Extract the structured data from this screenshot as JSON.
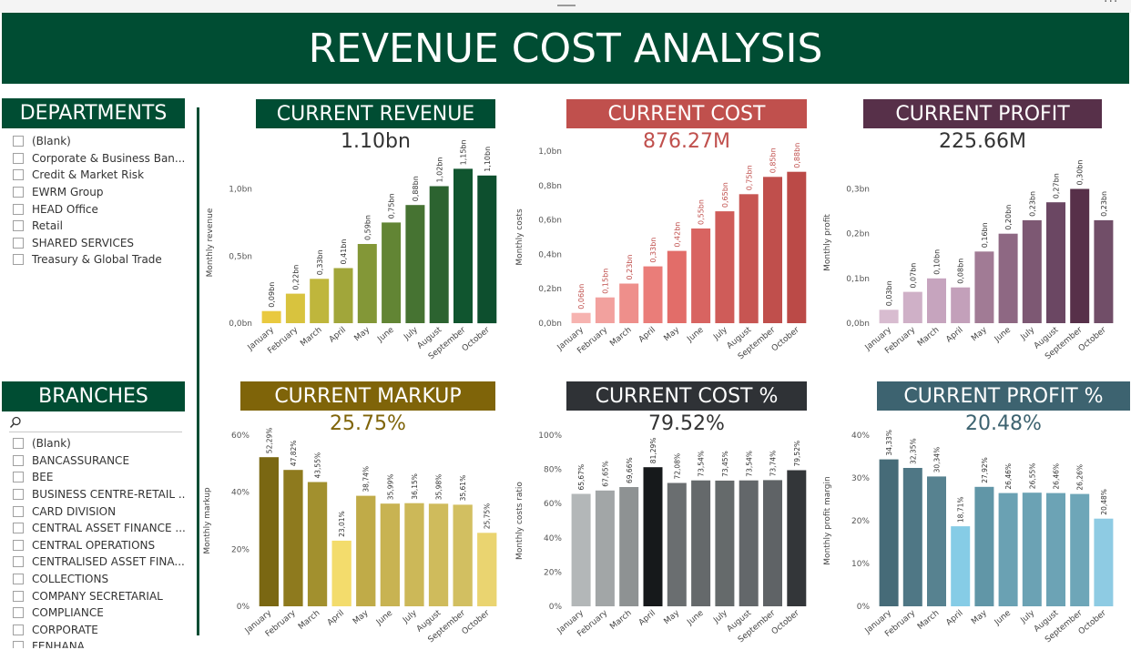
{
  "app": {
    "title": "REVENUE COST ANALYSIS"
  },
  "departments": {
    "title": "DEPARTMENTS",
    "items": [
      "(Blank)",
      "Corporate & Business Ban...",
      "Credit & Market Risk",
      "EWRM Group",
      "HEAD Office",
      "Retail",
      "SHARED SERVICES",
      "Treasury & Global Trade"
    ]
  },
  "branches": {
    "title": "BRANCHES",
    "search_placeholder": "",
    "items": [
      "(Blank)",
      "BANCASSURANCE",
      "BEE",
      "BUSINESS CENTRE-RETAIL ...",
      "CARD DIVISION",
      "CENTRAL ASSET FINANCE ...",
      "CENTRAL OPERATIONS",
      "CENTRALISED ASSET FINA...",
      "COLLECTIONS",
      "COMPANY SECRETARIAL",
      "COMPLIANCE",
      "CORPORATE",
      "FENHANA"
    ]
  },
  "chart_data": [
    {
      "id": "revenue",
      "type": "bar",
      "title": "CURRENT REVENUE",
      "kpi": "1.10bn",
      "title_bg": "#004d33",
      "kpi_color": "#333333",
      "label_color": "#333333",
      "label_size": 8,
      "ylabel": "Monthly revenue",
      "ylim": [
        0,
        1.2
      ],
      "ticks": [
        0,
        0.5,
        1.0
      ],
      "tick_labels": [
        "0,0bn",
        "0,5bn",
        "1,0bn"
      ],
      "categories": [
        "January",
        "February",
        "March",
        "April",
        "May",
        "June",
        "July",
        "August",
        "September",
        "October"
      ],
      "values": [
        0.09,
        0.22,
        0.33,
        0.41,
        0.59,
        0.75,
        0.88,
        1.02,
        1.15,
        1.1
      ],
      "labels": [
        "0,09bn",
        "0,22bn",
        "0,33bn",
        "0,41bn",
        "0,59bn",
        "0,75bn",
        "0,88bn",
        "1,02bn",
        "1,15bn",
        "1,10bn"
      ],
      "colors": [
        "#e9c93f",
        "#d8c33e",
        "#bfb63c",
        "#a1a63a",
        "#839737",
        "#628534",
        "#467332",
        "#2c6330",
        "#10552f",
        "#0d4f2e"
      ]
    },
    {
      "id": "cost",
      "type": "bar",
      "title": "CURRENT COST",
      "kpi": "876.27M",
      "title_bg": "#c0504d",
      "kpi_color": "#c0504d",
      "label_color": "#c0504d",
      "label_size": 8,
      "ylabel": "Monthly costs",
      "ylim": [
        0,
        1.0
      ],
      "ticks": [
        0,
        0.2,
        0.4,
        0.6,
        0.8,
        1.0
      ],
      "tick_labels": [
        "0,0bn",
        "0,2bn",
        "0,4bn",
        "0,6bn",
        "0,8bn",
        "1,0bn"
      ],
      "categories": [
        "January",
        "February",
        "March",
        "April",
        "May",
        "June",
        "July",
        "August",
        "September",
        "October"
      ],
      "values": [
        0.06,
        0.15,
        0.23,
        0.33,
        0.42,
        0.55,
        0.65,
        0.75,
        0.85,
        0.88
      ],
      "labels": [
        "0,06bn",
        "0,15bn",
        "0,23bn",
        "0,33bn",
        "0,42bn",
        "0,55bn",
        "0,65bn",
        "0,75bn",
        "0,85bn",
        "0,88bn"
      ],
      "colors": [
        "#f6b3b0",
        "#f2a19e",
        "#ee8f8b",
        "#ea7d79",
        "#e26d69",
        "#d86461",
        "#cf5c59",
        "#c75552",
        "#c04f4c",
        "#bb4a47"
      ]
    },
    {
      "id": "profit",
      "type": "bar",
      "title": "CURRENT PROFIT",
      "kpi": "225.66M",
      "title_bg": "#573049",
      "kpi_color": "#333333",
      "label_color": "#333333",
      "label_size": 8,
      "ylabel": "Monthly profit",
      "ylim": [
        0,
        0.36
      ],
      "ticks": [
        0,
        0.1,
        0.2,
        0.3
      ],
      "tick_labels": [
        "0,0bn",
        "0,1bn",
        "0,2bn",
        "0,3bn"
      ],
      "categories": [
        "January",
        "February",
        "March",
        "April",
        "May",
        "June",
        "July",
        "August",
        "September",
        "October"
      ],
      "values": [
        0.03,
        0.07,
        0.1,
        0.08,
        0.16,
        0.2,
        0.23,
        0.27,
        0.3,
        0.23
      ],
      "labels": [
        "0,03bn",
        "0,07bn",
        "0,10bn",
        "0,08bn",
        "0,16bn",
        "0,20bn",
        "0,23bn",
        "0,27bn",
        "0,30bn",
        "0,23bn"
      ],
      "colors": [
        "#d8bcd0",
        "#cfb0c7",
        "#c6a4be",
        "#c3a0ba",
        "#a17b95",
        "#8e6883",
        "#7d5873",
        "#6b4763",
        "#573049",
        "#714e68"
      ]
    },
    {
      "id": "markup",
      "type": "bar",
      "title": "CURRENT MARKUP",
      "kpi": "25.75%",
      "title_bg": "#7f6409",
      "kpi_color": "#7f6409",
      "label_color": "#333333",
      "label_size": 7.5,
      "ylabel": "Monthly markup",
      "ylim": [
        0,
        60
      ],
      "ticks": [
        0,
        20,
        40,
        60
      ],
      "tick_labels": [
        "0%",
        "20%",
        "40%",
        "60%"
      ],
      "categories": [
        "January",
        "February",
        "March",
        "April",
        "May",
        "June",
        "July",
        "August",
        "September",
        "October"
      ],
      "values": [
        52.29,
        47.82,
        43.55,
        23.01,
        38.74,
        35.99,
        36.15,
        35.98,
        35.61,
        25.75
      ],
      "labels": [
        "52,29%",
        "47,82%",
        "43,55%",
        "23,01%",
        "38,74%",
        "35,99%",
        "36,15%",
        "35,98%",
        "35,61%",
        "25,75%"
      ],
      "colors": [
        "#7a6712",
        "#8e7a1e",
        "#a2902e",
        "#f3dc6c",
        "#c0ab48",
        "#c8b352",
        "#ccb858",
        "#cfbb5c",
        "#d2bf61",
        "#ead470"
      ]
    },
    {
      "id": "costpct",
      "type": "bar",
      "title": "CURRENT COST %",
      "kpi": "79.52%",
      "title_bg": "#2f3236",
      "kpi_color": "#333333",
      "label_color": "#333333",
      "label_size": 7.5,
      "ylabel": "Monthly costs ratio",
      "ylim": [
        0,
        100
      ],
      "ticks": [
        0,
        20,
        40,
        60,
        80,
        100
      ],
      "tick_labels": [
        "0%",
        "20%",
        "40%",
        "60%",
        "80%",
        "100%"
      ],
      "categories": [
        "January",
        "February",
        "March",
        "April",
        "May",
        "June",
        "July",
        "August",
        "September",
        "October"
      ],
      "values": [
        65.67,
        67.65,
        69.66,
        81.29,
        72.08,
        73.54,
        73.45,
        73.54,
        73.74,
        79.52
      ],
      "labels": [
        "65,67%",
        "67,65%",
        "69,66%",
        "81,29%",
        "72,08%",
        "73,54%",
        "73,45%",
        "73,54%",
        "73,74%",
        "79,52%"
      ],
      "colors": [
        "#b3b7b8",
        "#a2a6a7",
        "#8e9293",
        "#16191b",
        "#6a6e70",
        "#65696b",
        "#656a6b",
        "#63676a",
        "#5f6366",
        "#333639"
      ]
    },
    {
      "id": "profitpct",
      "type": "bar",
      "title": "CURRENT PROFIT %",
      "kpi": "20.48%",
      "title_bg": "#3d6370",
      "kpi_color": "#3d6370",
      "label_color": "#333333",
      "label_size": 7.5,
      "ylabel": "Monthly profit margin",
      "ylim": [
        0,
        40
      ],
      "ticks": [
        0,
        10,
        20,
        30,
        40
      ],
      "tick_labels": [
        "0%",
        "10%",
        "20%",
        "30%",
        "40%"
      ],
      "categories": [
        "January",
        "February",
        "March",
        "April",
        "May",
        "June",
        "July",
        "August",
        "September",
        "October"
      ],
      "values": [
        34.33,
        32.35,
        30.34,
        18.71,
        27.92,
        26.46,
        26.55,
        26.46,
        26.26,
        20.48
      ],
      "labels": [
        "34,33%",
        "32,35%",
        "30,34%",
        "18,71%",
        "27,92%",
        "26,46%",
        "26,55%",
        "26,46%",
        "26,26%",
        "20,48%"
      ],
      "colors": [
        "#466b78",
        "#4f7785",
        "#578290",
        "#86cce6",
        "#6196a7",
        "#6aa1b3",
        "#6ba2b4",
        "#6ca3b5",
        "#6ea6b8",
        "#8ecbe3"
      ]
    }
  ]
}
